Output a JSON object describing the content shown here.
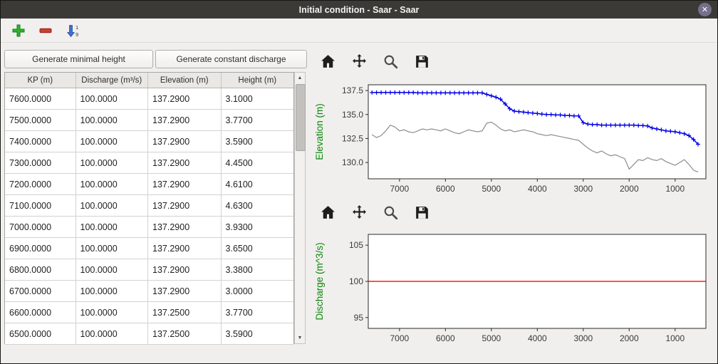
{
  "window": {
    "title": "Initial condition - Saar - Saar",
    "close_glyph": "✕"
  },
  "toolbar": {
    "icons": [
      {
        "name": "add-row",
        "color": "#2db52d"
      },
      {
        "name": "remove-row",
        "color": "#cf3d2e"
      },
      {
        "name": "sort-rows",
        "color": "#3f6fd1",
        "digits_top": "1",
        "digits_bottom": "9"
      }
    ]
  },
  "left_panel": {
    "buttons": [
      {
        "label": "Generate minimal height"
      },
      {
        "label": "Generate constant discharge"
      }
    ],
    "table": {
      "columns": [
        "KP (m)",
        "Discharge (m³/s)",
        "Elevation (m)",
        "Height (m)"
      ],
      "rows": [
        [
          "7600.0000",
          "100.0000",
          "137.2900",
          "3.1000"
        ],
        [
          "7500.0000",
          "100.0000",
          "137.2900",
          "3.7700"
        ],
        [
          "7400.0000",
          "100.0000",
          "137.2900",
          "3.5900"
        ],
        [
          "7300.0000",
          "100.0000",
          "137.2900",
          "4.4500"
        ],
        [
          "7200.0000",
          "100.0000",
          "137.2900",
          "4.6100"
        ],
        [
          "7100.0000",
          "100.0000",
          "137.2900",
          "4.6300"
        ],
        [
          "7000.0000",
          "100.0000",
          "137.2900",
          "3.9300"
        ],
        [
          "6900.0000",
          "100.0000",
          "137.2900",
          "3.6500"
        ],
        [
          "6800.0000",
          "100.0000",
          "137.2900",
          "3.3800"
        ],
        [
          "6700.0000",
          "100.0000",
          "137.2900",
          "3.0000"
        ],
        [
          "6600.0000",
          "100.0000",
          "137.2500",
          "3.7700"
        ],
        [
          "6500.0000",
          "100.0000",
          "137.2500",
          "3.5900"
        ]
      ]
    }
  },
  "chart_data": [
    {
      "type": "line",
      "title": "",
      "xlabel": "",
      "ylabel": "Elevation (m)",
      "ylabel_color": "#0a870a",
      "grid": false,
      "x_axis_reversed": true,
      "xlim": [
        7680,
        330
      ],
      "ylim": [
        128.3,
        138.1
      ],
      "x_ticks": [
        7000,
        6000,
        5000,
        4000,
        3000,
        2000,
        1000
      ],
      "x_tick_labels": [
        "7000",
        "6000",
        "5000",
        "4000",
        "3000",
        "2000",
        "1000"
      ],
      "y_ticks": [
        130.0,
        132.5,
        135.0,
        137.5
      ],
      "y_tick_labels": [
        "130.0",
        "132.5",
        "135.0",
        "137.5"
      ],
      "series": [
        {
          "name": "water-surface-elevation",
          "color": "#0000e6",
          "width": 1.5,
          "marker": "+",
          "x_start": 7600,
          "x_step": -100,
          "y": [
            137.29,
            137.29,
            137.29,
            137.29,
            137.29,
            137.29,
            137.29,
            137.29,
            137.29,
            137.29,
            137.25,
            137.25,
            137.25,
            137.25,
            137.25,
            137.25,
            137.25,
            137.25,
            137.25,
            137.25,
            137.25,
            137.25,
            137.25,
            137.25,
            137.25,
            137.1,
            136.95,
            136.8,
            136.6,
            136.1,
            135.6,
            135.35,
            135.3,
            135.25,
            135.2,
            135.15,
            135.1,
            135.05,
            135.0,
            135.0,
            134.95,
            134.95,
            134.9,
            134.9,
            134.85,
            134.85,
            134.15,
            134.0,
            133.95,
            133.95,
            133.9,
            133.9,
            133.9,
            133.9,
            133.9,
            133.9,
            133.9,
            133.9,
            133.85,
            133.85,
            133.8,
            133.6,
            133.5,
            133.4,
            133.3,
            133.25,
            133.2,
            133.1,
            133.0,
            132.8,
            132.4,
            131.9
          ]
        },
        {
          "name": "bed-elevation",
          "color": "#8c8c8c",
          "width": 1.2,
          "x_start": 7600,
          "x_step": -100,
          "y": [
            132.9,
            132.6,
            132.8,
            133.3,
            133.9,
            133.7,
            133.3,
            133.4,
            133.2,
            133.1,
            133.3,
            133.5,
            133.4,
            133.5,
            133.4,
            133.3,
            133.5,
            133.3,
            133.1,
            133.0,
            133.2,
            133.4,
            133.3,
            133.2,
            133.3,
            134.1,
            134.2,
            133.9,
            133.5,
            133.3,
            133.4,
            133.2,
            133.3,
            133.4,
            133.3,
            133.2,
            133.0,
            132.9,
            132.8,
            132.9,
            132.8,
            132.7,
            132.6,
            132.5,
            132.4,
            132.3,
            131.9,
            131.5,
            131.2,
            131.0,
            131.2,
            130.9,
            130.7,
            130.8,
            130.6,
            130.4,
            129.3,
            129.8,
            130.3,
            130.2,
            130.5,
            130.3,
            130.2,
            130.4,
            130.1,
            129.9,
            129.7,
            130.0,
            130.3,
            129.8,
            129.2,
            129.0
          ]
        }
      ]
    },
    {
      "type": "line",
      "title": "",
      "xlabel": "",
      "ylabel": "Discharge (m^3/s)",
      "ylabel_color": "#0a870a",
      "grid": false,
      "x_axis_reversed": true,
      "xlim": [
        7680,
        330
      ],
      "ylim": [
        93.5,
        106.5
      ],
      "x_ticks": [
        7000,
        6000,
        5000,
        4000,
        3000,
        2000,
        1000
      ],
      "x_tick_labels": [
        "7000",
        "6000",
        "5000",
        "4000",
        "3000",
        "2000",
        "1000"
      ],
      "y_ticks": [
        95,
        100,
        105
      ],
      "y_tick_labels": [
        "95",
        "100",
        "105"
      ],
      "series": [
        {
          "name": "constant-discharge",
          "color": "#ff1a1a",
          "width": 1.4,
          "x": [
            7680,
            330
          ],
          "y": [
            100,
            100
          ]
        }
      ]
    }
  ]
}
